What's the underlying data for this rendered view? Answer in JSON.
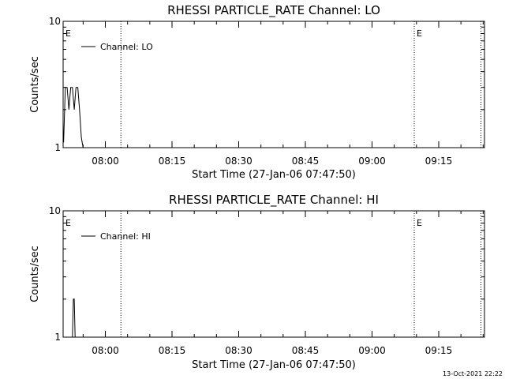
{
  "chart_data": [
    {
      "type": "line",
      "title": "RHESSI PARTICLE_RATE Channel: LO",
      "xlabel": "Start Time (27-Jan-06 07:47:50)",
      "ylabel": "Counts/sec",
      "y_scale": "log",
      "ylim": [
        1,
        10
      ],
      "y_tick_labels": [
        "1",
        "10"
      ],
      "x_range": [
        "07:50:30",
        "09:25:20"
      ],
      "x_tick_labels": [
        "08:00",
        "08:15",
        "08:30",
        "08:45",
        "09:00",
        "09:15"
      ],
      "x_tick_minutes": [
        0,
        15,
        30,
        45,
        60,
        75
      ],
      "x_range_minutes": [
        -9.5,
        85.3
      ],
      "markers": [
        {
          "label": "E",
          "minutes": -9.5
        },
        {
          "label": "",
          "minutes": 3.5
        },
        {
          "label": "E",
          "minutes": 69.5
        },
        {
          "label": "",
          "minutes": 84.5
        }
      ],
      "legend_position": "top-left",
      "series": [
        {
          "name": "Channel: LO",
          "x_minutes": [
            -9.4,
            -9.0,
            -8.6,
            -8.2,
            -7.8,
            -7.4,
            -7.0,
            -6.6,
            -6.2,
            -5.8,
            -5.4,
            -5.0
          ],
          "values": [
            1.1,
            3.0,
            3.0,
            2.0,
            3.0,
            3.0,
            2.0,
            3.0,
            3.0,
            2.0,
            1.2,
            1.0
          ]
        }
      ]
    },
    {
      "type": "line",
      "title": "RHESSI PARTICLE_RATE Channel: HI",
      "xlabel": "Start Time (27-Jan-06 07:47:50)",
      "ylabel": "Counts/sec",
      "y_scale": "log",
      "ylim": [
        1,
        10
      ],
      "y_tick_labels": [
        "1",
        "10"
      ],
      "x_range": [
        "07:50:30",
        "09:25:20"
      ],
      "x_tick_labels": [
        "08:00",
        "08:15",
        "08:30",
        "08:45",
        "09:00",
        "09:15"
      ],
      "x_tick_minutes": [
        0,
        15,
        30,
        45,
        60,
        75
      ],
      "x_range_minutes": [
        -9.5,
        85.3
      ],
      "markers": [
        {
          "label": "E",
          "minutes": -9.5
        },
        {
          "label": "",
          "minutes": 3.5
        },
        {
          "label": "E",
          "minutes": 69.5
        },
        {
          "label": "",
          "minutes": 84.5
        }
      ],
      "legend_position": "top-left",
      "series": [
        {
          "name": "Channel: HI",
          "x_minutes": [
            -7.4,
            -7.2,
            -7.0,
            -6.8,
            -6.6
          ],
          "values": [
            1.0,
            2.0,
            2.0,
            1.0,
            1.0
          ]
        }
      ]
    }
  ],
  "footer": {
    "timestamp": "13-Oct-2021 22:22"
  }
}
